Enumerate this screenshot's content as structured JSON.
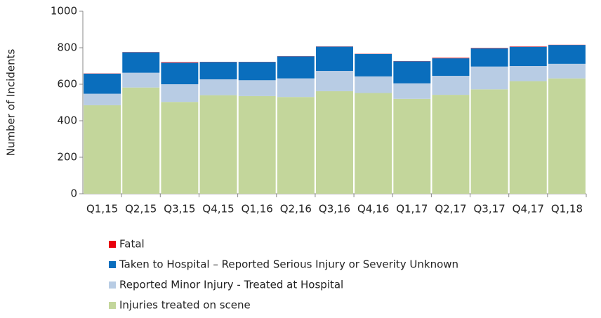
{
  "chart_data": {
    "type": "stacked_bar",
    "y_label": "Number of Incidents",
    "categories": [
      "Q1,15",
      "Q2,15",
      "Q3,15",
      "Q4,15",
      "Q1,16",
      "Q2,16",
      "Q3,16",
      "Q4,16",
      "Q1,17",
      "Q2,17",
      "Q3,17",
      "Q4,17",
      "Q1,18"
    ],
    "series": [
      {
        "name": "Fatal",
        "color": "#e8000b",
        "values": [
          1,
          1,
          3,
          1,
          1,
          1,
          1,
          1,
          1,
          3,
          2,
          2,
          1
        ]
      },
      {
        "name": "Taken to Hospital – Reported Serious Injury or Severity Unknown",
        "color": "#0a6ebd",
        "values": [
          110,
          112,
          118,
          95,
          100,
          121,
          133,
          123,
          121,
          96,
          100,
          105,
          103
        ]
      },
      {
        "name": "Reported Minor Injury - Treated at Hospital",
        "color": "#b8cce4",
        "values": [
          63,
          81,
          97,
          87,
          87,
          102,
          111,
          91,
          85,
          104,
          125,
          83,
          80
        ]
      },
      {
        "name": "Injuries treated on scene",
        "color": "#c3d69b",
        "values": [
          485,
          582,
          503,
          540,
          535,
          530,
          562,
          552,
          520,
          542,
          572,
          617,
          632
        ]
      }
    ],
    "ylim": [
      0,
      1000
    ],
    "yticks": [
      0,
      200,
      400,
      600,
      800,
      1000
    ]
  }
}
